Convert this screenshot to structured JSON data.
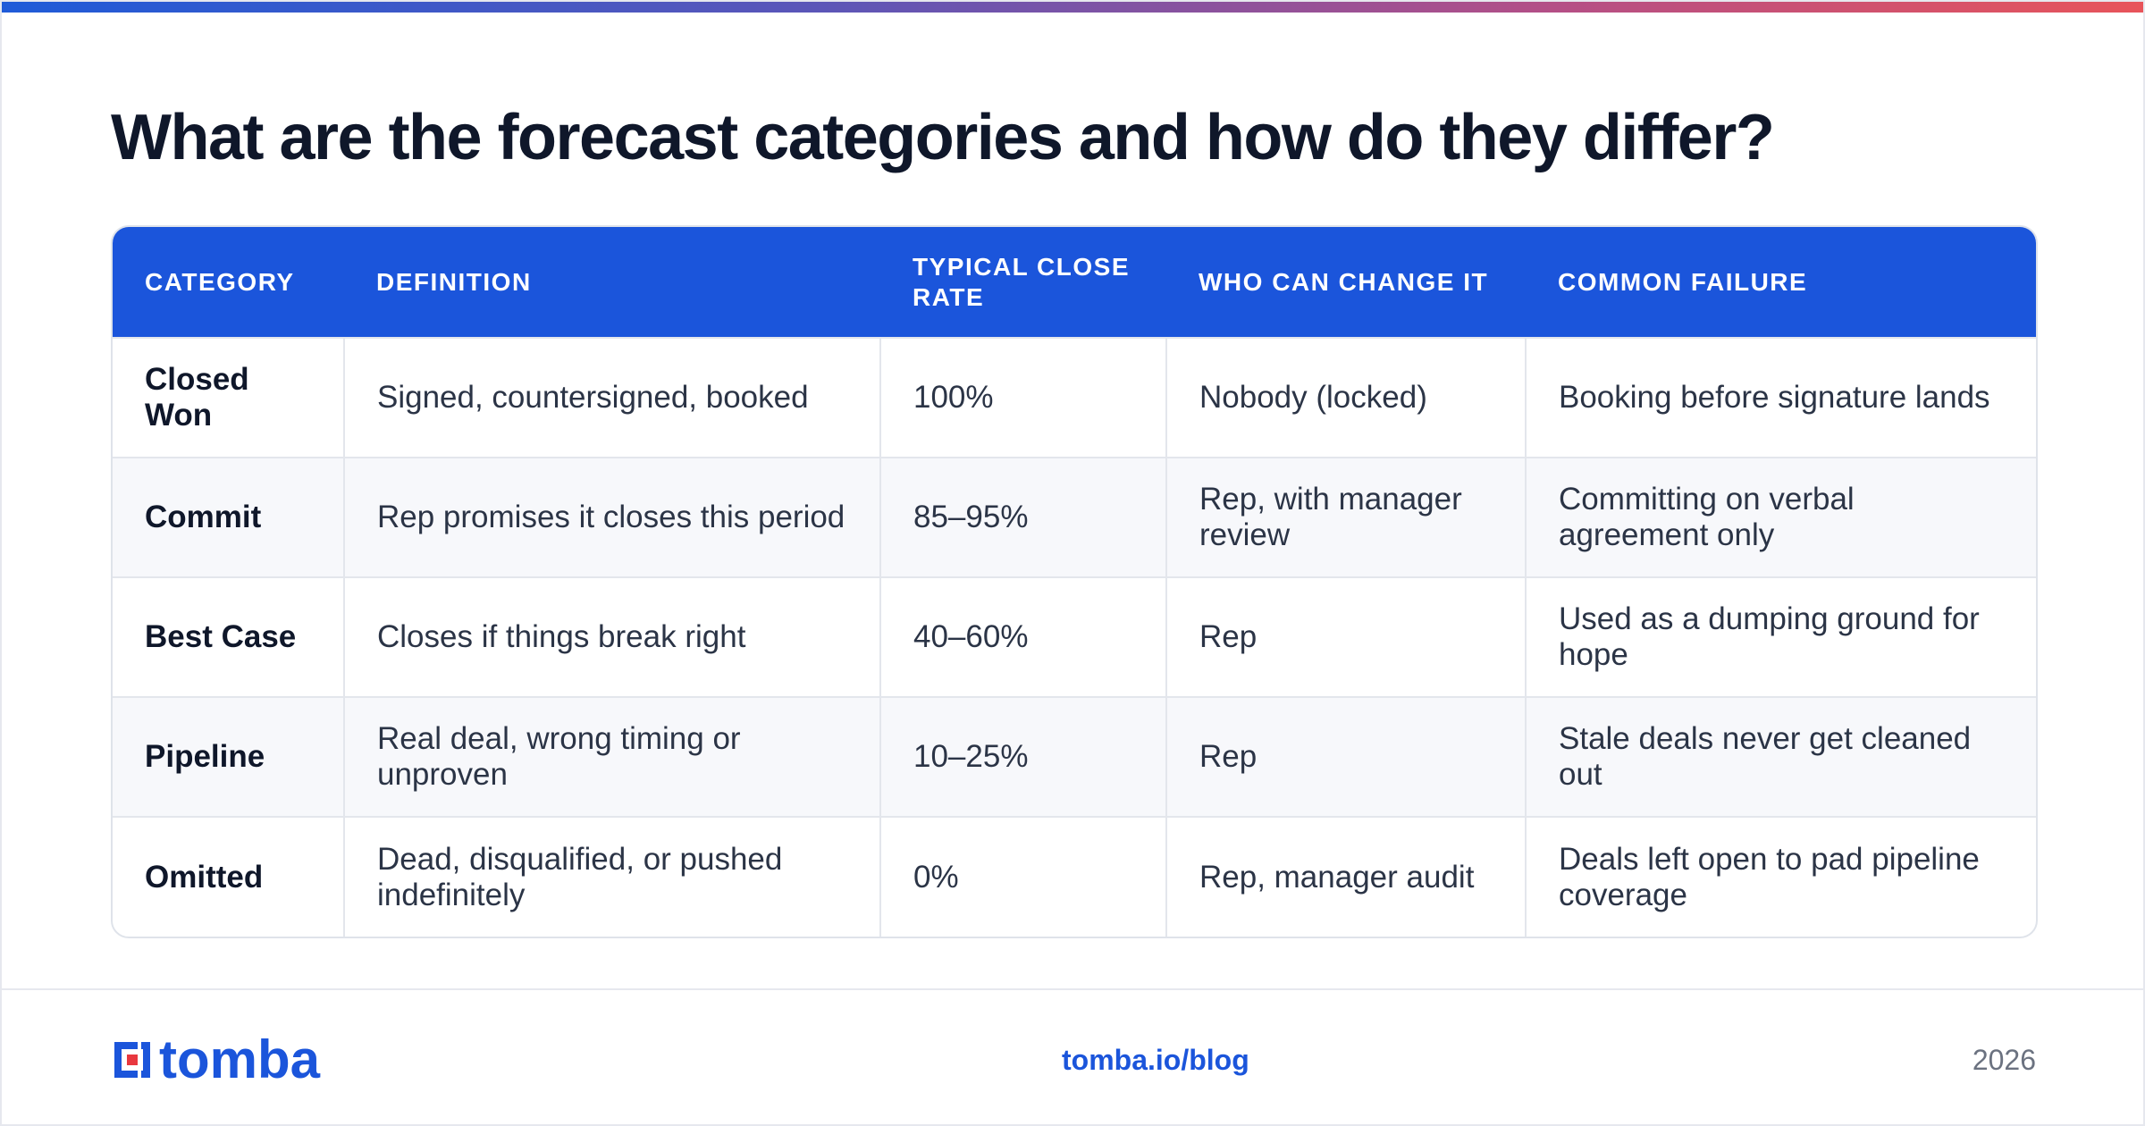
{
  "title": "What are the forecast categories and how do they differ?",
  "colors": {
    "header_bg": "#1b55db",
    "accent": "#1b55db",
    "gradient": [
      "#1f5bd8",
      "#5b56b8",
      "#b34f87",
      "#e8545a"
    ]
  },
  "table": {
    "headers": [
      "CATEGORY",
      "DEFINITION",
      "TYPICAL CLOSE RATE",
      "WHO CAN CHANGE IT",
      "COMMON FAILURE"
    ],
    "rows": [
      [
        "Closed Won",
        "Signed, countersigned, booked",
        "100%",
        "Nobody (locked)",
        "Booking before signature lands"
      ],
      [
        "Commit",
        "Rep promises it closes this period",
        "85–95%",
        "Rep, with manager review",
        "Committing on verbal agreement only"
      ],
      [
        "Best Case",
        "Closes if things break right",
        "40–60%",
        "Rep",
        "Used as a dumping ground for hope"
      ],
      [
        "Pipeline",
        "Real deal, wrong timing or unproven",
        "10–25%",
        "Rep",
        "Stale deals never get cleaned out"
      ],
      [
        "Omitted",
        "Dead, disqualified, or pushed indefinitely",
        "0%",
        "Rep, manager audit",
        "Deals left open to pad pipeline coverage"
      ]
    ]
  },
  "footer": {
    "logo_text": "tomba",
    "logo_icon": "tomba-logo-icon",
    "link": "tomba.io/blog",
    "year": "2026"
  }
}
